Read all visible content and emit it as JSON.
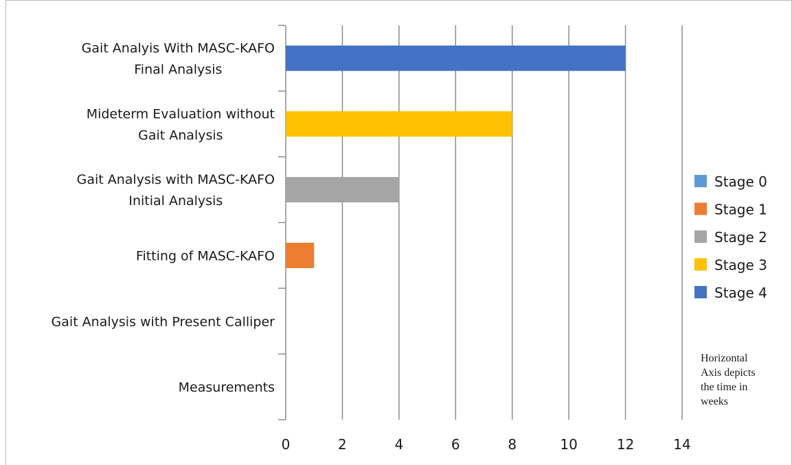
{
  "chart_data": {
    "type": "bar",
    "orientation": "horizontal",
    "title": "",
    "xlabel": "",
    "ylabel": "",
    "xlim": [
      0,
      14
    ],
    "x_ticks": [
      "0",
      "2",
      "4",
      "6",
      "8",
      "10",
      "12",
      "14"
    ],
    "grid": true,
    "categories": [
      {
        "lines": [
          "Gait Analyis With MASC-KAFO",
          "Final Analysis"
        ],
        "value": 12,
        "stage": 4
      },
      {
        "lines": [
          "Mideterm Evaluation without",
          "Gait Analysis"
        ],
        "value": 8,
        "stage": 3
      },
      {
        "lines": [
          "Gait Analysis with MASC-KAFO",
          "Initial Analysis"
        ],
        "value": 4,
        "stage": 2
      },
      {
        "lines": [
          "Fitting of MASC-KAFO"
        ],
        "value": 1,
        "stage": 1
      },
      {
        "lines": [
          "Gait Analysis with Present Calliper"
        ],
        "value": 0,
        "stage": 0
      },
      {
        "lines": [
          "Measurements"
        ],
        "value": 0,
        "stage": 0
      }
    ],
    "legend": {
      "position": "right",
      "entries": [
        {
          "name": "Stage 0",
          "color": "#5b9bd5"
        },
        {
          "name": "Stage 1",
          "color": "#ed7d31"
        },
        {
          "name": "Stage 2",
          "color": "#a5a5a5"
        },
        {
          "name": "Stage 3",
          "color": "#ffc000"
        },
        {
          "name": "Stage 4",
          "color": "#4472c4"
        }
      ]
    },
    "annotation": [
      "Horizontal",
      "Axis depicts",
      "the time in",
      "weeks"
    ]
  }
}
